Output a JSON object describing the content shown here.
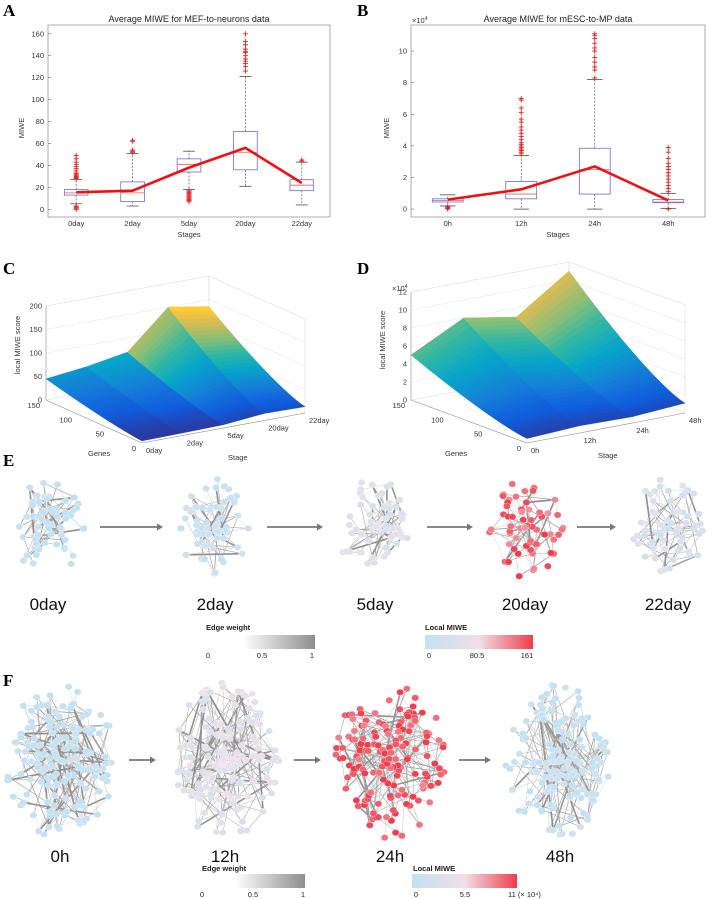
{
  "panels": {
    "A": "A",
    "B": "B",
    "C": "C",
    "D": "D",
    "E": "E",
    "F": "F"
  },
  "chart_data": [
    {
      "id": "A",
      "type": "boxplot",
      "title": "Average MIWE for MEF-to-neurons data",
      "xlabel": "Stages",
      "ylabel": "MIWE",
      "categories": [
        "0day",
        "2day",
        "5day",
        "20day",
        "22day"
      ],
      "ylim": [
        -7,
        168
      ],
      "yticks": [
        0,
        20,
        40,
        60,
        80,
        100,
        120,
        140,
        160
      ],
      "boxes": [
        {
          "q1": 13,
          "median": 15,
          "q3": 18,
          "whisker_low": 5,
          "whisker_high": 27,
          "outliers": [
            0,
            1,
            2,
            3,
            28,
            29,
            30,
            31,
            32,
            33,
            35,
            37,
            39,
            41,
            43,
            46,
            49
          ]
        },
        {
          "q1": 7,
          "median": 15,
          "q3": 25,
          "whisker_low": 3,
          "whisker_high": 51,
          "outliers": [
            52,
            53,
            54,
            62,
            63
          ]
        },
        {
          "q1": 34,
          "median": 41,
          "q3": 46,
          "whisker_low": 18,
          "whisker_high": 53,
          "outliers": [
            7,
            8,
            9,
            10,
            11,
            12,
            13,
            14,
            15,
            16,
            17
          ]
        },
        {
          "q1": 36,
          "median": 52,
          "q3": 71,
          "whisker_low": 21,
          "whisker_high": 121,
          "outliers": [
            126,
            130,
            133,
            135,
            137,
            140,
            143,
            144,
            146,
            150,
            153,
            160
          ]
        },
        {
          "q1": 17,
          "median": 22,
          "q3": 27,
          "whisker_low": 4,
          "whisker_high": 43,
          "outliers": [
            44,
            45
          ]
        }
      ],
      "mean_line": [
        15.5,
        17,
        38,
        56,
        24
      ],
      "colors": {
        "box": "#6b6bd6",
        "median": "#e06060",
        "outlier": "#e02020",
        "mean": "#ee1111"
      }
    },
    {
      "id": "B",
      "type": "boxplot",
      "title": "Average MIWE for mESC-to-MP data",
      "xlabel": "Stages",
      "ylabel": "MIWE",
      "y_multiplier": "×10",
      "y_multiplier_exp": "4",
      "categories": [
        "0h",
        "12h",
        "24h",
        "48h"
      ],
      "ylim": [
        -0.5,
        11.65
      ],
      "yticks": [
        0,
        2,
        4,
        6,
        8,
        10
      ],
      "boxes": [
        {
          "q1": 0.45,
          "median": 0.55,
          "q3": 0.65,
          "whisker_low": 0.2,
          "whisker_high": 0.9,
          "outliers": [
            0,
            0.05,
            0.1,
            0.15
          ]
        },
        {
          "q1": 0.65,
          "median": 0.95,
          "q3": 1.75,
          "whisker_low": 0,
          "whisker_high": 3.4,
          "outliers": [
            3.5,
            3.6,
            3.7,
            3.8,
            3.9,
            4.0,
            4.1,
            4.2,
            4.4,
            4.6,
            4.8,
            5.0,
            5.2,
            5.5,
            5.7,
            6.1,
            6.4,
            6.9,
            7.0
          ]
        },
        {
          "q1": 0.95,
          "median": 2.5,
          "q3": 3.85,
          "whisker_low": 0,
          "whisker_high": 8.2,
          "outliers": [
            8.3,
            8.8,
            9.0,
            9.3,
            9.6,
            10.0,
            10.2,
            10.5,
            10.8,
            11.0,
            11.1
          ]
        },
        {
          "q1": 0.4,
          "median": 0.45,
          "q3": 0.6,
          "whisker_low": 0.05,
          "whisker_high": 1.0,
          "outliers": [
            0,
            1.1,
            1.3,
            1.5,
            1.7,
            1.9,
            2.1,
            2.3,
            2.5,
            2.7,
            2.9,
            3.2,
            3.6,
            3.9
          ]
        }
      ],
      "mean_line": [
        0.6,
        1.25,
        2.7,
        0.55
      ],
      "colors": {
        "box": "#6b6bd6",
        "median": "#e06060",
        "outlier": "#e02020",
        "mean": "#ee1111"
      }
    },
    {
      "id": "C",
      "type": "surface",
      "zlabel": "local MIWE score",
      "xlabel": "Genes",
      "ylabel": "Stage",
      "zticks": [
        0,
        50,
        100,
        150,
        200
      ],
      "gene_ticks": [
        0,
        50,
        100,
        150
      ],
      "stages": [
        "0day",
        "2day",
        "5day",
        "20day",
        "22day"
      ],
      "peak_profile": [
        45,
        55,
        70,
        150,
        135
      ],
      "colormap": "parula"
    },
    {
      "id": "D",
      "type": "surface",
      "zlabel": "local MIWE score",
      "xlabel": "Genes",
      "ylabel": "Stage",
      "z_multiplier": "×10",
      "z_multiplier_exp": "4",
      "zticks": [
        0,
        2,
        4,
        6,
        8,
        10,
        12
      ],
      "gene_ticks": [
        0,
        50,
        100,
        150
      ],
      "stages": [
        "0h",
        "12h",
        "24h",
        "48h"
      ],
      "peak_profile": [
        5,
        8,
        7,
        11
      ],
      "colormap": "parula"
    }
  ],
  "networks": {
    "E": {
      "stages": [
        "0day",
        "2day",
        "5day",
        "20day",
        "22day"
      ],
      "node_level": [
        0.0,
        0.12,
        0.3,
        0.85,
        0.22
      ]
    },
    "F": {
      "stages": [
        "0h",
        "12h",
        "24h",
        "48h"
      ],
      "node_level": [
        0.0,
        0.35,
        0.9,
        0.05
      ]
    }
  },
  "legends": {
    "E": {
      "edge_title": "Edge weight",
      "edge_ticks": [
        "0",
        "0.5",
        "1"
      ],
      "miwe_title": "Local MIWE",
      "miwe_ticks": [
        "0",
        "80.5",
        "161"
      ]
    },
    "F": {
      "edge_title": "Edge weight",
      "edge_ticks": [
        "0",
        "0.5",
        "1"
      ],
      "miwe_title": "Local MIWE",
      "miwe_ticks": [
        "0",
        "5.5",
        "11 (× 10⁴)"
      ]
    },
    "colors": {
      "low": "#c2e1f2",
      "mid": "#f1dfe6",
      "high": "#ee3d4d",
      "edge_low": "#ffffff",
      "edge_high": "#8e8e8e"
    }
  }
}
